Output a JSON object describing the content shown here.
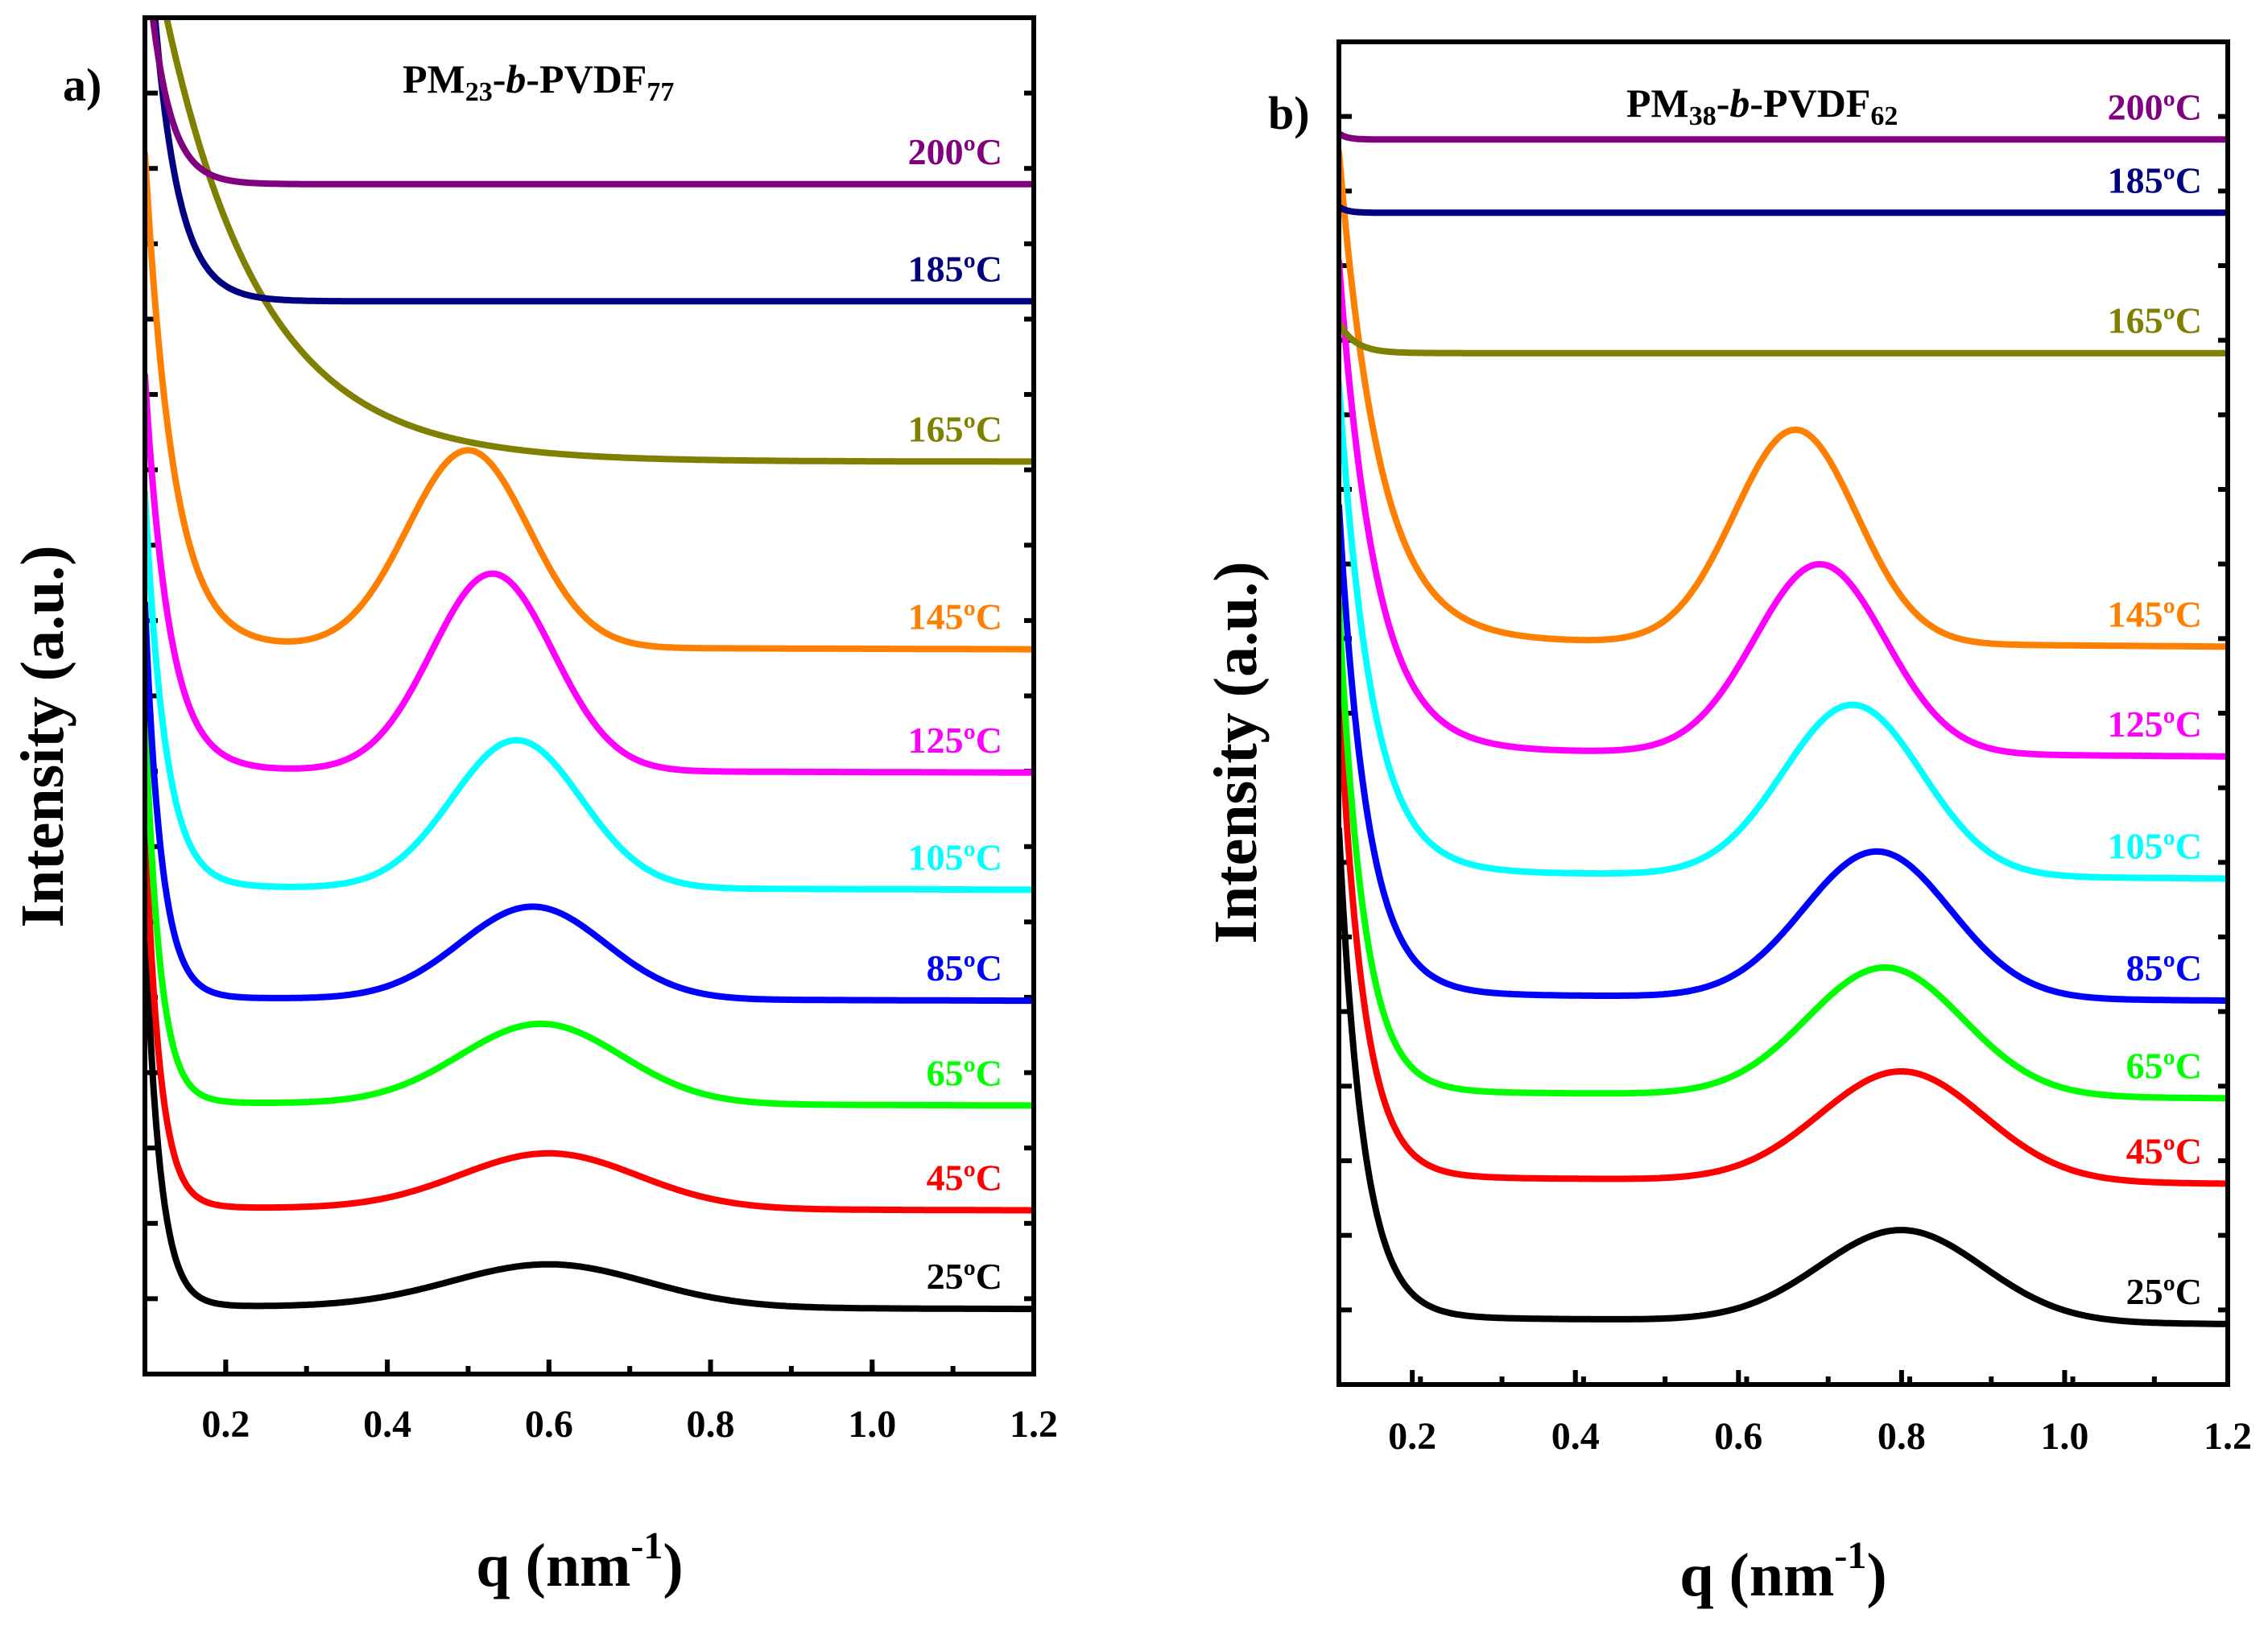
{
  "chart_data": [
    {
      "type": "line",
      "panel_label": "a)",
      "title_parts": [
        "PM",
        "23",
        "-",
        "b",
        "-PVDF",
        "77"
      ],
      "xlabel": "q (nm",
      "xlabel_sup": "-1",
      "xlabel_close": ")",
      "ylabel": "Intensity (a.u.)",
      "xlim": [
        0.1,
        1.2
      ],
      "ylim": [
        0,
        11
      ],
      "xticks": [
        0.2,
        0.4,
        0.6,
        0.8,
        1.0,
        1.2
      ],
      "xtick_labels": [
        "0.2",
        "0.4",
        "0.6",
        "0.8",
        "1.0",
        "1.2"
      ],
      "series": [
        {
          "name": "25ºC",
          "color": "#000000",
          "baseline": 0.55,
          "rise": 3.2,
          "decay": 0.018,
          "peak_q": 0.6,
          "peak_amp": 0.35,
          "peak_width": 0.12,
          "tail": -0.02
        },
        {
          "name": "45ºC",
          "color": "#ff0000",
          "baseline": 1.35,
          "rise": 3.2,
          "decay": 0.018,
          "peak_q": 0.6,
          "peak_amp": 0.45,
          "peak_width": 0.11,
          "tail": -0.02
        },
        {
          "name": "65ºC",
          "color": "#00ff00",
          "baseline": 2.2,
          "rise": 3.2,
          "decay": 0.018,
          "peak_q": 0.59,
          "peak_amp": 0.65,
          "peak_width": 0.1,
          "tail": -0.02
        },
        {
          "name": "85ºC",
          "color": "#0000ff",
          "baseline": 3.05,
          "rise": 3.2,
          "decay": 0.02,
          "peak_q": 0.58,
          "peak_amp": 0.75,
          "peak_width": 0.09,
          "tail": -0.02
        },
        {
          "name": "105ºC",
          "color": "#00ffff",
          "baseline": 3.95,
          "rise": 3.2,
          "decay": 0.025,
          "peak_q": 0.56,
          "peak_amp": 1.2,
          "peak_width": 0.08,
          "tail": -0.02
        },
        {
          "name": "125ºC",
          "color": "#ff00ff",
          "baseline": 4.9,
          "rise": 3.2,
          "decay": 0.03,
          "peak_q": 0.53,
          "peak_amp": 1.6,
          "peak_width": 0.075,
          "tail": -0.02
        },
        {
          "name": "145ºC",
          "color": "#ff7f00",
          "baseline": 5.9,
          "rise": 4.0,
          "decay": 0.035,
          "peak_q": 0.5,
          "peak_amp": 1.6,
          "peak_width": 0.075,
          "tail": -0.02
        },
        {
          "name": "165ºC",
          "color": "#808000",
          "baseline": 7.4,
          "rise": 4.5,
          "decay": 0.12,
          "peak_q": 0.5,
          "peak_amp": 0,
          "peak_width": 0.1,
          "tail": 0
        },
        {
          "name": "185ºC",
          "color": "#000080",
          "baseline": 8.7,
          "rise": 3.5,
          "decay": 0.03,
          "peak_q": 0.5,
          "peak_amp": 0,
          "peak_width": 0.1,
          "tail": 0
        },
        {
          "name": "200ºC",
          "color": "#800080",
          "baseline": 9.65,
          "rise": 2.0,
          "decay": 0.025,
          "peak_q": 0.5,
          "peak_amp": 0,
          "peak_width": 0.1,
          "tail": 0
        }
      ]
    },
    {
      "type": "line",
      "panel_label": "b)",
      "title_parts": [
        "PM",
        "38",
        "-",
        "b",
        "-PVDF",
        "62"
      ],
      "xlabel": "q (nm",
      "xlabel_sup": "-1",
      "xlabel_close": ")",
      "ylabel": "Intensity (a.u.)",
      "xlim": [
        0.11,
        1.2
      ],
      "ylim": [
        0,
        11
      ],
      "xticks": [
        0.2,
        0.4,
        0.6,
        0.8,
        1.0,
        1.2
      ],
      "xtick_labels": [
        "0.2",
        "0.4",
        "0.6",
        "0.8",
        "1.0",
        "1.2"
      ],
      "series": [
        {
          "name": "25ºC",
          "color": "#000000",
          "baseline": 0.55,
          "rise": 4.0,
          "decay": 0.03,
          "peak_q": 0.8,
          "peak_amp": 0.75,
          "peak_width": 0.1,
          "tail": -0.05
        },
        {
          "name": "45ºC",
          "color": "#ff0000",
          "baseline": 1.7,
          "rise": 4.0,
          "decay": 0.03,
          "peak_q": 0.8,
          "peak_amp": 0.9,
          "peak_width": 0.1,
          "tail": -0.05
        },
        {
          "name": "65ºC",
          "color": "#00ff00",
          "baseline": 2.4,
          "rise": 4.0,
          "decay": 0.03,
          "peak_q": 0.78,
          "peak_amp": 1.05,
          "peak_width": 0.095,
          "tail": -0.05
        },
        {
          "name": "85ºC",
          "color": "#0000ff",
          "baseline": 3.2,
          "rise": 4.0,
          "decay": 0.035,
          "peak_q": 0.77,
          "peak_amp": 1.2,
          "peak_width": 0.09,
          "tail": -0.05
        },
        {
          "name": "105ºC",
          "color": "#00ffff",
          "baseline": 4.2,
          "rise": 4.0,
          "decay": 0.04,
          "peak_q": 0.74,
          "peak_amp": 1.4,
          "peak_width": 0.085,
          "tail": -0.05
        },
        {
          "name": "125ºC",
          "color": "#ff00ff",
          "baseline": 5.2,
          "rise": 4.0,
          "decay": 0.045,
          "peak_q": 0.7,
          "peak_amp": 1.55,
          "peak_width": 0.08,
          "tail": -0.05
        },
        {
          "name": "145ºC",
          "color": "#ff7f00",
          "baseline": 6.1,
          "rise": 4.0,
          "decay": 0.05,
          "peak_q": 0.67,
          "peak_amp": 1.75,
          "peak_width": 0.075,
          "tail": -0.05
        },
        {
          "name": "165ºC",
          "color": "#808000",
          "baseline": 8.45,
          "rise": 0.25,
          "decay": 0.02,
          "peak_q": 0.5,
          "peak_amp": 0,
          "peak_width": 0.1,
          "tail": 0
        },
        {
          "name": "185ºC",
          "color": "#000080",
          "baseline": 9.6,
          "rise": 0.05,
          "decay": 0.01,
          "peak_q": 0.5,
          "peak_amp": 0,
          "peak_width": 0.1,
          "tail": 0
        },
        {
          "name": "200ºC",
          "color": "#800080",
          "baseline": 10.2,
          "rise": 0.05,
          "decay": 0.01,
          "peak_q": 0.5,
          "peak_amp": 0,
          "peak_width": 0.1,
          "tail": 0
        }
      ]
    }
  ]
}
